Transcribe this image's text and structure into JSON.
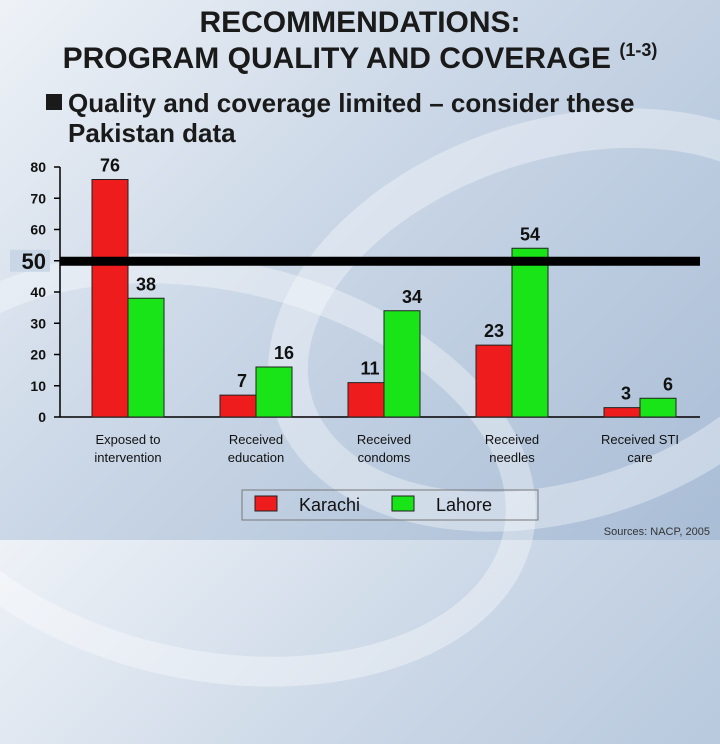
{
  "slide": {
    "title_line1": "RECOMMENDATIONS:",
    "title_line2": "PROGRAM QUALITY AND COVERAGE",
    "title_superscript": "(1-3)",
    "subtitle": "Quality and coverage limited – consider these Pakistan data",
    "source": "Sources: NACP, 2005"
  },
  "chart_data": {
    "type": "bar",
    "categories": [
      "Exposed to intervention",
      "Received education",
      "Received condoms",
      "Received needles",
      "Received STI care"
    ],
    "category_lines": [
      [
        "Exposed to",
        "intervention"
      ],
      [
        "Received",
        "education"
      ],
      [
        "Received",
        "condoms"
      ],
      [
        "Received",
        "needles"
      ],
      [
        "Received STI",
        "care"
      ]
    ],
    "series": [
      {
        "name": "Karachi",
        "values": [
          76,
          7,
          11,
          23,
          3
        ],
        "color": "#ee1c1c"
      },
      {
        "name": "Lahore",
        "values": [
          38,
          16,
          34,
          54,
          6
        ],
        "color": "#18e418"
      }
    ],
    "ylim": [
      0,
      80
    ],
    "yticks": [
      0,
      10,
      20,
      30,
      40,
      50,
      60,
      70,
      80
    ],
    "reference_line": {
      "value": 50,
      "label": "50"
    },
    "grid": false,
    "legend_position": "bottom"
  }
}
